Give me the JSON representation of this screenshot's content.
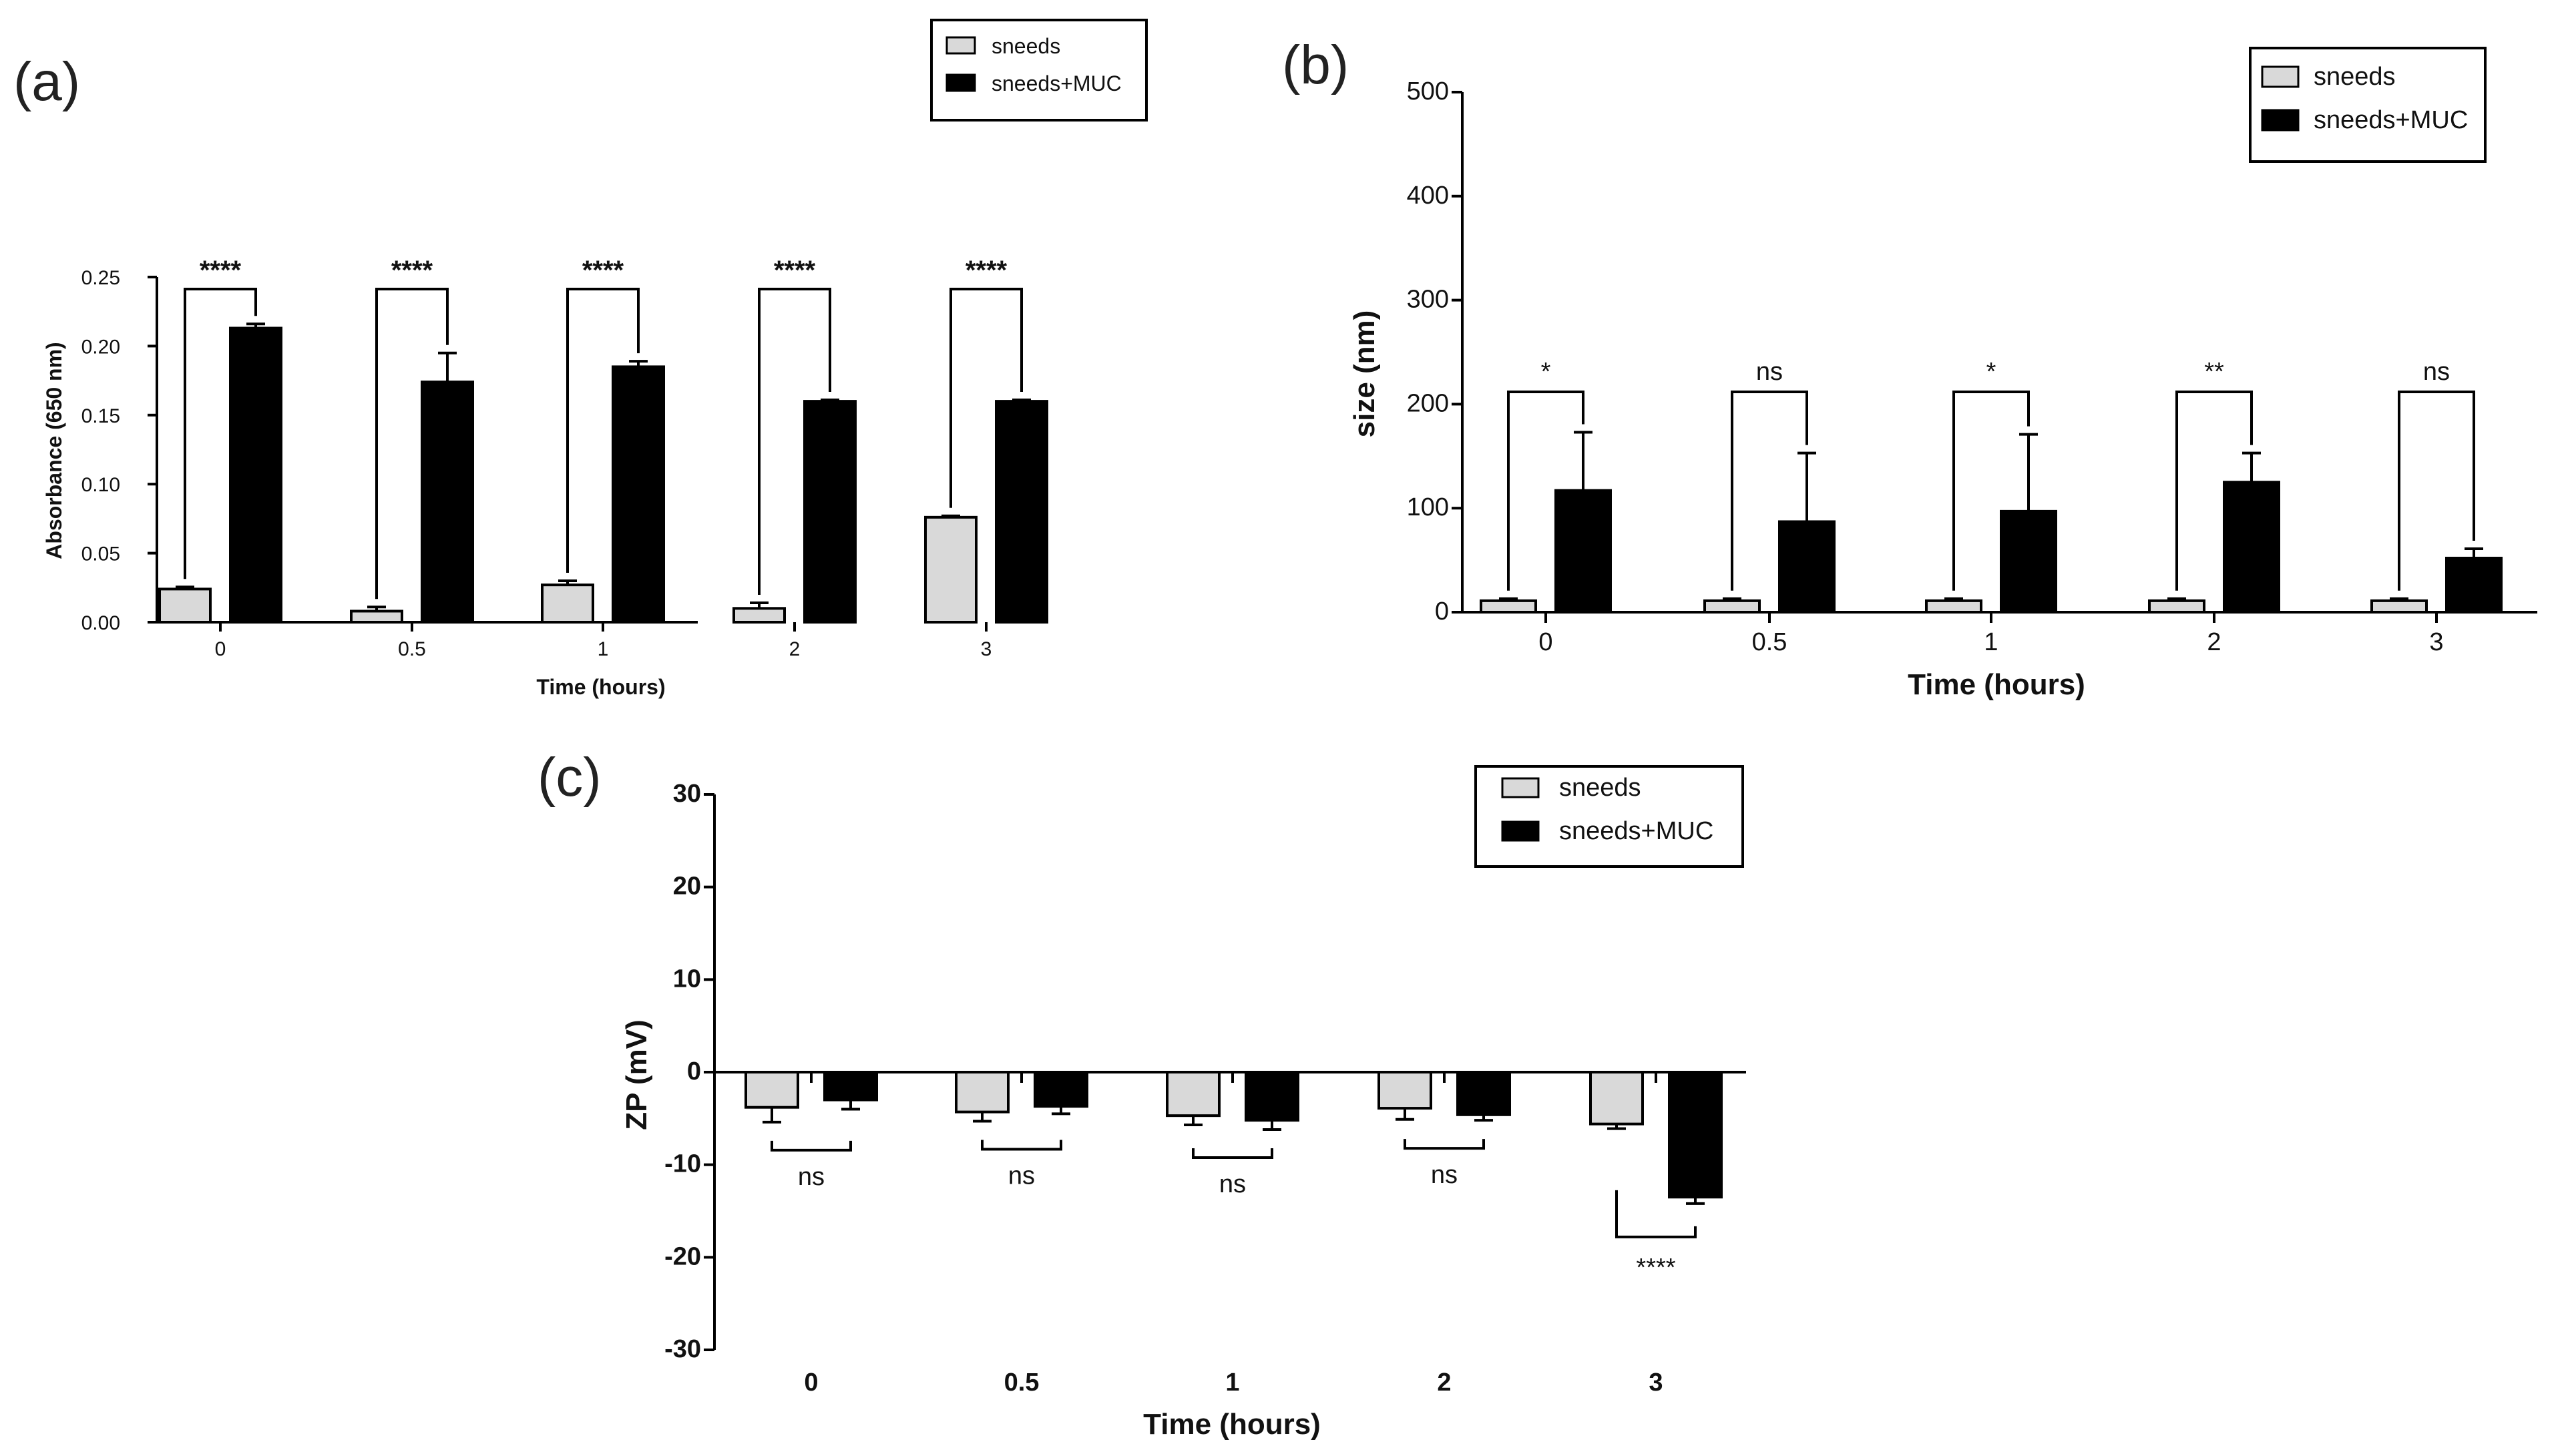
{
  "figure": {
    "panel_labels": [
      "(a)",
      "(b)",
      "(c)"
    ]
  },
  "colors": {
    "sneeds": "#d9d9d9",
    "sneeds_muc": "#000000",
    "axis": "#000000"
  },
  "chart_data": [
    {
      "id": "a",
      "type": "bar",
      "panel_label": "(a)",
      "title": "",
      "xlabel": "Time (hours)",
      "ylabel": "Absorbance (650 nm)",
      "categories": [
        "0",
        "0.5",
        "1",
        "2",
        "3"
      ],
      "ylim": [
        0,
        0.25
      ],
      "yticks": [
        0.0,
        0.05,
        0.1,
        0.15,
        0.2,
        0.25
      ],
      "ytick_labels": [
        "0.00",
        "0.05",
        "0.10",
        "0.15",
        "0.20",
        "0.25"
      ],
      "series": [
        {
          "name": "sneeds",
          "values": [
            0.024,
            0.008,
            0.027,
            0.01,
            0.076
          ],
          "errors": [
            0.0015,
            0.003,
            0.003,
            0.004,
            0.001
          ]
        },
        {
          "name": "sneeds+MUC",
          "values": [
            0.213,
            0.174,
            0.185,
            0.16,
            0.16
          ],
          "errors": [
            0.003,
            0.021,
            0.004,
            0.001,
            0.001
          ]
        }
      ],
      "significance": [
        "****",
        "****",
        "****",
        "****",
        "****"
      ],
      "legend": [
        "sneeds",
        "sneeds+MUC"
      ],
      "legend_position": "top-right"
    },
    {
      "id": "b",
      "type": "bar",
      "panel_label": "(b)",
      "title": "",
      "xlabel": "Time (hours)",
      "ylabel": "size (nm)",
      "categories": [
        "0",
        "0.5",
        "1",
        "2",
        "3"
      ],
      "ylim": [
        0,
        500
      ],
      "yticks": [
        0,
        100,
        200,
        300,
        400,
        500
      ],
      "ytick_labels": [
        "0",
        "100",
        "200",
        "300",
        "400",
        "500"
      ],
      "series": [
        {
          "name": "sneeds",
          "values": [
            11,
            11,
            11,
            11,
            11
          ],
          "errors": [
            2,
            2,
            2,
            2,
            2
          ]
        },
        {
          "name": "sneeds+MUC",
          "values": [
            117,
            87,
            97,
            125,
            52
          ],
          "errors": [
            56,
            66,
            74,
            28,
            9
          ]
        }
      ],
      "significance": [
        "*",
        "ns",
        "*",
        "**",
        "ns"
      ],
      "legend": [
        "sneeds",
        "sneeds+MUC"
      ],
      "legend_position": "top-right"
    },
    {
      "id": "c",
      "type": "bar",
      "panel_label": "(c)",
      "title": "",
      "xlabel": "Time (hours)",
      "ylabel": "ZP (mV)",
      "categories": [
        "0",
        "0.5",
        "1",
        "2",
        "3"
      ],
      "ylim": [
        -30,
        30
      ],
      "yticks": [
        -30,
        -20,
        -10,
        0,
        10,
        20,
        30
      ],
      "ytick_labels": [
        "-30",
        "-20",
        "-10",
        "0",
        "10",
        "20",
        "30"
      ],
      "series": [
        {
          "name": "sneeds",
          "values": [
            -3.8,
            -4.3,
            -4.7,
            -3.9,
            -5.6
          ],
          "errors": [
            1.6,
            1.0,
            1.0,
            1.2,
            0.5
          ]
        },
        {
          "name": "sneeds+MUC",
          "values": [
            -3.0,
            -3.7,
            -5.2,
            -4.6,
            -13.5
          ],
          "errors": [
            1.0,
            0.8,
            1.0,
            0.6,
            0.7
          ]
        }
      ],
      "significance": [
        "ns",
        "ns",
        "ns",
        "ns",
        "****"
      ],
      "legend": [
        "sneeds",
        "sneeds+MUC"
      ],
      "legend_position": "top-right"
    }
  ]
}
